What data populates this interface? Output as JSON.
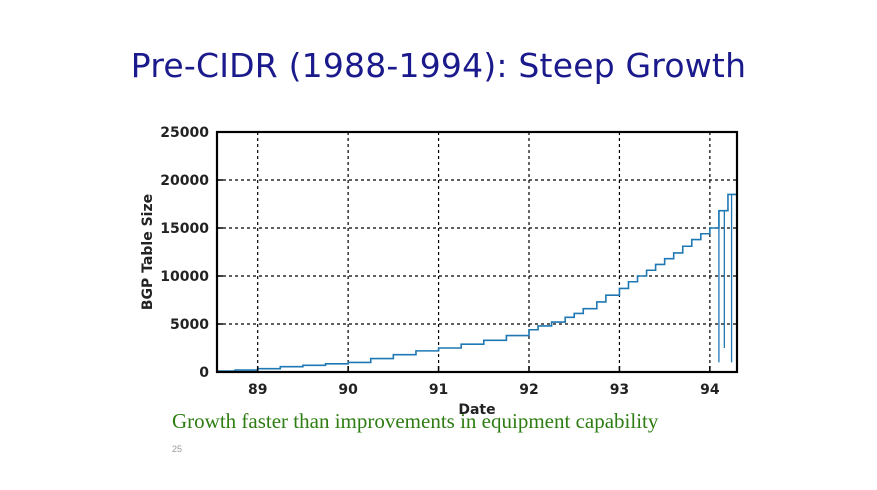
{
  "slide": {
    "title": "Pre-CIDR (1988-1994): Steep Growth",
    "caption": "Growth faster than improvements in equipment capability",
    "page_number": "25"
  },
  "colors": {
    "title": "#1a1a8c",
    "caption": "#2e7d12",
    "series": "#1f78b4",
    "grid": "#000000"
  },
  "chart_data": {
    "type": "line",
    "title": "",
    "xlabel": "Date",
    "ylabel": "BGP Table Size",
    "xlim": [
      1988.55,
      1994.3
    ],
    "ylim": [
      0,
      25000
    ],
    "x_ticks": [
      1989,
      1990,
      1991,
      1992,
      1993,
      1994
    ],
    "x_tick_labels": [
      "89",
      "90",
      "91",
      "92",
      "93",
      "94"
    ],
    "y_ticks": [
      0,
      5000,
      10000,
      15000,
      20000,
      25000
    ],
    "y_tick_labels": [
      "0",
      "5000",
      "10000",
      "15000",
      "20000",
      "25000"
    ],
    "grid": true,
    "legend": "none",
    "step": true,
    "series": [
      {
        "name": "",
        "x": [
          1988.55,
          1988.75,
          1989.0,
          1989.25,
          1989.5,
          1989.75,
          1990.0,
          1990.25,
          1990.5,
          1990.75,
          1991.0,
          1991.25,
          1991.5,
          1991.75,
          1992.0,
          1992.1,
          1992.25,
          1992.4,
          1992.5,
          1992.6,
          1992.75,
          1992.85,
          1993.0,
          1993.1,
          1993.2,
          1993.3,
          1993.4,
          1993.5,
          1993.6,
          1993.7,
          1993.8,
          1993.9,
          1994.0,
          1994.1,
          1994.2,
          1994.3
        ],
        "y": [
          100,
          200,
          350,
          550,
          700,
          850,
          1000,
          1400,
          1800,
          2200,
          2500,
          2900,
          3300,
          3800,
          4400,
          4800,
          5200,
          5700,
          6100,
          6600,
          7300,
          8000,
          8700,
          9400,
          10000,
          10600,
          11200,
          11800,
          12400,
          13100,
          13800,
          14400,
          15000,
          16800,
          18500,
          20000
        ]
      }
    ],
    "dropouts": [
      {
        "x": 1994.1,
        "y": 1000
      },
      {
        "x": 1994.16,
        "y": 2500
      },
      {
        "x": 1994.24,
        "y": 1000
      }
    ]
  }
}
